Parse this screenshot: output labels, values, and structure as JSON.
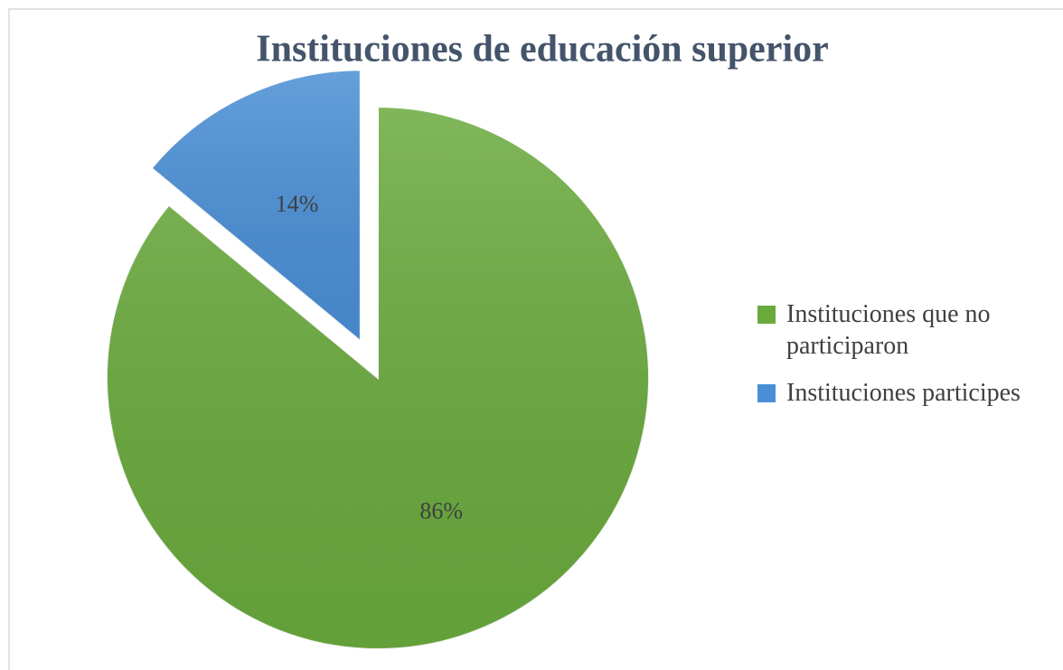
{
  "chart_data": {
    "type": "pie",
    "title": "Instituciones de educación superior",
    "categories": [
      "Instituciones que no participaron",
      "Instituciones participes"
    ],
    "values": [
      86,
      14
    ],
    "value_labels": [
      "86%",
      "14%"
    ],
    "colors": [
      "#6aaa3d",
      "#4a8fd6"
    ],
    "legend": "right"
  }
}
